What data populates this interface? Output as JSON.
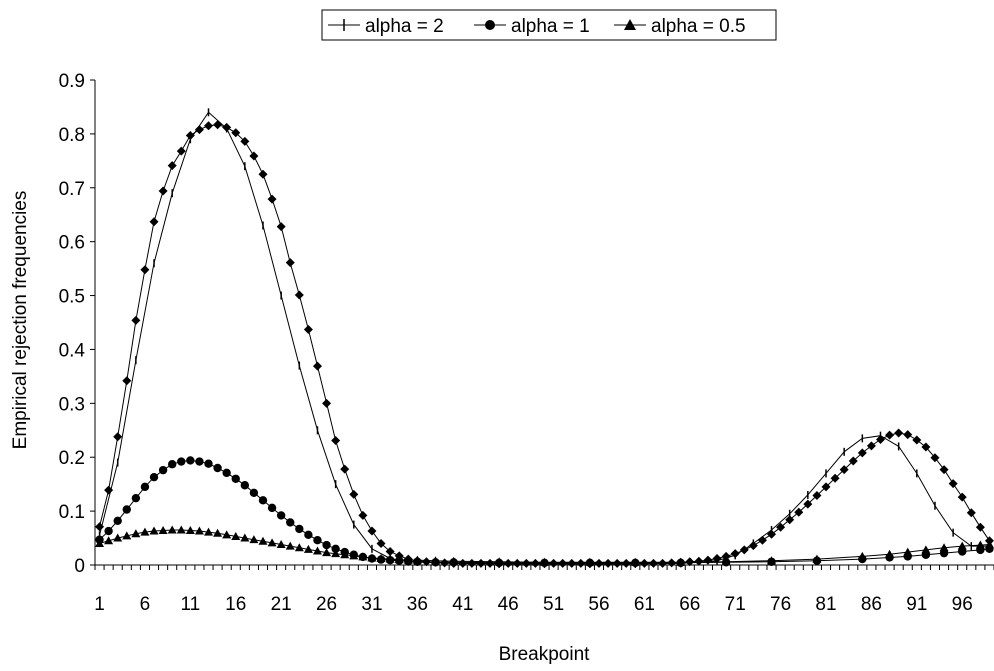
{
  "chart_data": {
    "type": "line",
    "title": "",
    "xlabel": "Breakpoint",
    "ylabel": "Empirical rejection frequencies",
    "ylim": [
      0,
      0.9
    ],
    "yticks": [
      "0",
      "0.1",
      "0.2",
      "0.3",
      "0.4",
      "0.5",
      "0.6",
      "0.7",
      "0.8",
      "0.9"
    ],
    "x_categories_count": 99,
    "xticks": [
      "1",
      "6",
      "11",
      "16",
      "21",
      "26",
      "31",
      "36",
      "41",
      "46",
      "51",
      "56",
      "61",
      "66",
      "71",
      "76",
      "81",
      "86",
      "91",
      "96"
    ],
    "grid": false,
    "legend_position": "top",
    "series": [
      {
        "name": "alpha = 2",
        "marker": "plus",
        "x": [
          1,
          3,
          5,
          7,
          9,
          11,
          13,
          15,
          17,
          19,
          21,
          23,
          25,
          27,
          29,
          31,
          33,
          35,
          40,
          45,
          50,
          55,
          60,
          65,
          69,
          71,
          73,
          75,
          77,
          79,
          81,
          83,
          85,
          87,
          89,
          91,
          93,
          95,
          97,
          99
        ],
        "values": [
          0.055,
          0.19,
          0.38,
          0.56,
          0.69,
          0.79,
          0.84,
          0.81,
          0.74,
          0.63,
          0.5,
          0.37,
          0.25,
          0.15,
          0.075,
          0.03,
          0.012,
          0.006,
          0.003,
          0.002,
          0.002,
          0.002,
          0.002,
          0.003,
          0.008,
          0.018,
          0.04,
          0.065,
          0.095,
          0.13,
          0.17,
          0.21,
          0.235,
          0.24,
          0.22,
          0.17,
          0.11,
          0.06,
          0.035,
          0.035
        ]
      },
      {
        "name": "",
        "marker": "diamond",
        "x": [
          1,
          2,
          3,
          4,
          5,
          6,
          7,
          8,
          9,
          10,
          11,
          12,
          13,
          14,
          15,
          16,
          17,
          18,
          19,
          20,
          21,
          22,
          23,
          24,
          25,
          26,
          27,
          28,
          29,
          30,
          31,
          32,
          33,
          34,
          35,
          36,
          37,
          38,
          39,
          40,
          41,
          42,
          43,
          44,
          45,
          46,
          47,
          48,
          49,
          50,
          51,
          52,
          53,
          54,
          55,
          56,
          57,
          58,
          59,
          60,
          61,
          62,
          63,
          64,
          65,
          66,
          67,
          68,
          69,
          70,
          71,
          72,
          73,
          74,
          75,
          76,
          77,
          78,
          79,
          80,
          81,
          82,
          83,
          84,
          85,
          86,
          87,
          88,
          89,
          90,
          91,
          92,
          93,
          94,
          95,
          96,
          97,
          98,
          99
        ],
        "values": [
          0.071,
          0.139,
          0.238,
          0.342,
          0.454,
          0.548,
          0.637,
          0.694,
          0.741,
          0.768,
          0.797,
          0.808,
          0.815,
          0.817,
          0.812,
          0.802,
          0.786,
          0.759,
          0.725,
          0.679,
          0.628,
          0.561,
          0.501,
          0.437,
          0.369,
          0.3,
          0.231,
          0.178,
          0.131,
          0.092,
          0.063,
          0.04,
          0.025,
          0.017,
          0.011,
          0.008,
          0.006,
          0.005,
          0.004,
          0.003,
          0.003,
          0.003,
          0.003,
          0.003,
          0.003,
          0.003,
          0.003,
          0.003,
          0.003,
          0.003,
          0.003,
          0.003,
          0.003,
          0.003,
          0.003,
          0.003,
          0.003,
          0.003,
          0.003,
          0.003,
          0.003,
          0.003,
          0.003,
          0.004,
          0.005,
          0.006,
          0.007,
          0.009,
          0.012,
          0.016,
          0.021,
          0.028,
          0.036,
          0.046,
          0.057,
          0.07,
          0.084,
          0.098,
          0.113,
          0.129,
          0.145,
          0.161,
          0.177,
          0.193,
          0.208,
          0.221,
          0.233,
          0.241,
          0.245,
          0.242,
          0.232,
          0.219,
          0.199,
          0.177,
          0.151,
          0.126,
          0.097,
          0.07,
          0.045
        ]
      },
      {
        "name": "alpha = 1",
        "marker": "circle",
        "x": [
          1,
          2,
          3,
          4,
          5,
          6,
          7,
          8,
          9,
          10,
          11,
          12,
          13,
          14,
          15,
          16,
          17,
          18,
          19,
          20,
          21,
          22,
          23,
          24,
          25,
          26,
          27,
          28,
          29,
          30,
          31,
          32,
          33,
          34,
          35,
          36,
          38,
          40,
          45,
          50,
          55,
          60,
          65,
          70,
          75,
          80,
          85,
          88,
          90,
          92,
          94,
          96,
          98,
          99
        ],
        "values": [
          0.047,
          0.063,
          0.082,
          0.103,
          0.124,
          0.145,
          0.163,
          0.176,
          0.187,
          0.192,
          0.194,
          0.192,
          0.188,
          0.18,
          0.171,
          0.16,
          0.148,
          0.134,
          0.12,
          0.106,
          0.092,
          0.079,
          0.067,
          0.056,
          0.046,
          0.037,
          0.03,
          0.024,
          0.019,
          0.015,
          0.012,
          0.01,
          0.009,
          0.008,
          0.007,
          0.006,
          0.005,
          0.005,
          0.004,
          0.004,
          0.004,
          0.004,
          0.004,
          0.005,
          0.006,
          0.008,
          0.011,
          0.014,
          0.016,
          0.019,
          0.022,
          0.025,
          0.028,
          0.03
        ]
      },
      {
        "name": "alpha = 0.5",
        "marker": "triangle",
        "x": [
          1,
          2,
          3,
          4,
          5,
          6,
          7,
          8,
          9,
          10,
          11,
          12,
          13,
          14,
          15,
          16,
          17,
          18,
          19,
          20,
          21,
          22,
          23,
          24,
          25,
          26,
          27,
          28,
          29,
          30,
          31,
          32,
          33,
          34,
          35,
          36,
          38,
          40,
          45,
          50,
          55,
          60,
          65,
          70,
          75,
          80,
          85,
          88,
          90,
          92,
          94,
          96,
          98,
          99
        ],
        "values": [
          0.04,
          0.045,
          0.05,
          0.054,
          0.058,
          0.061,
          0.063,
          0.064,
          0.065,
          0.065,
          0.064,
          0.063,
          0.061,
          0.059,
          0.056,
          0.053,
          0.05,
          0.047,
          0.044,
          0.041,
          0.038,
          0.035,
          0.032,
          0.029,
          0.026,
          0.023,
          0.021,
          0.019,
          0.017,
          0.015,
          0.013,
          0.012,
          0.011,
          0.01,
          0.009,
          0.009,
          0.008,
          0.007,
          0.006,
          0.005,
          0.005,
          0.005,
          0.005,
          0.006,
          0.008,
          0.011,
          0.016,
          0.02,
          0.024,
          0.028,
          0.032,
          0.035,
          0.037,
          0.038
        ]
      }
    ]
  }
}
